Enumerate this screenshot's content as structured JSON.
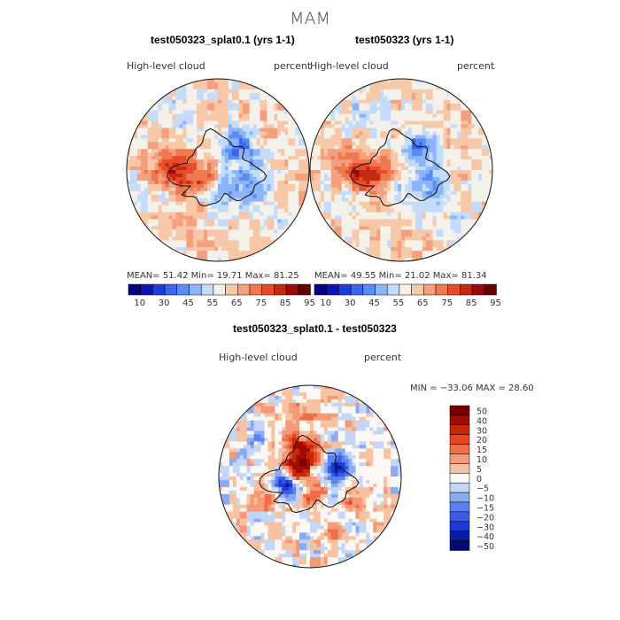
{
  "page": {
    "season_title": "MAM"
  },
  "colors": {
    "abs_scale": [
      "#00007f",
      "#0a14b4",
      "#1e3cdc",
      "#3c64f0",
      "#5a8cf5",
      "#8cb4f8",
      "#c4dcfb",
      "#f4f0ea",
      "#f6c8a8",
      "#f4a07e",
      "#ef7850",
      "#e64c28",
      "#c82812",
      "#9b0a0a",
      "#650000"
    ],
    "diff_scale": [
      "#000a73",
      "#0a1ea0",
      "#1c38d8",
      "#3c5ae8",
      "#5a82f0",
      "#8caaf2",
      "#c4d6f8",
      "#fbf7f2",
      "#f6c2a2",
      "#f49a78",
      "#ef6e48",
      "#e5461c",
      "#c8280a",
      "#a00c00",
      "#7a0000"
    ],
    "coast": "#1a1a1a"
  },
  "panels": {
    "left": {
      "title": "test050323_splat0.1 (yrs 1-1)",
      "var_label": "High-level  cloud",
      "units": "percent",
      "stats": "MEAN=   51.42    Min=   19.71    Max=   81.25"
    },
    "right": {
      "title": "test050323 (yrs 1-1)",
      "var_label": "High-level  cloud",
      "units": "percent",
      "stats": "MEAN=   49.55    Min=   21.02    Max=   81.34"
    },
    "bottom": {
      "title": "test050323_splat0.1 - test050323",
      "var_label": "High-level  cloud",
      "units": "percent",
      "minmax": "MIN = −33.06  MAX =   28.60"
    }
  },
  "chart_data": [
    {
      "type": "heatmap",
      "projection": "south-polar-stereographic",
      "title": "test050323_splat0.1 (yrs 1-1)",
      "variable": "High-level cloud",
      "units": "percent",
      "mean": 51.42,
      "min": 19.71,
      "max": 81.25,
      "colorbar_ticks": [
        "10",
        "30",
        "45",
        "55",
        "65",
        "75",
        "85",
        "95"
      ]
    },
    {
      "type": "heatmap",
      "projection": "south-polar-stereographic",
      "title": "test050323 (yrs 1-1)",
      "variable": "High-level cloud",
      "units": "percent",
      "mean": 49.55,
      "min": 21.02,
      "max": 81.34,
      "colorbar_ticks": [
        "10",
        "30",
        "45",
        "55",
        "65",
        "75",
        "85",
        "95"
      ]
    },
    {
      "type": "heatmap",
      "projection": "south-polar-stereographic",
      "title": "test050323_splat0.1 - test050323",
      "variable": "High-level cloud",
      "units": "percent",
      "min": -33.06,
      "max": 28.6,
      "colorbar_levels": [
        "50",
        "40",
        "30",
        "20",
        "15",
        "10",
        "5",
        "0",
        "−5",
        "−10",
        "−15",
        "−20",
        "−30",
        "−40",
        "−50"
      ]
    }
  ]
}
